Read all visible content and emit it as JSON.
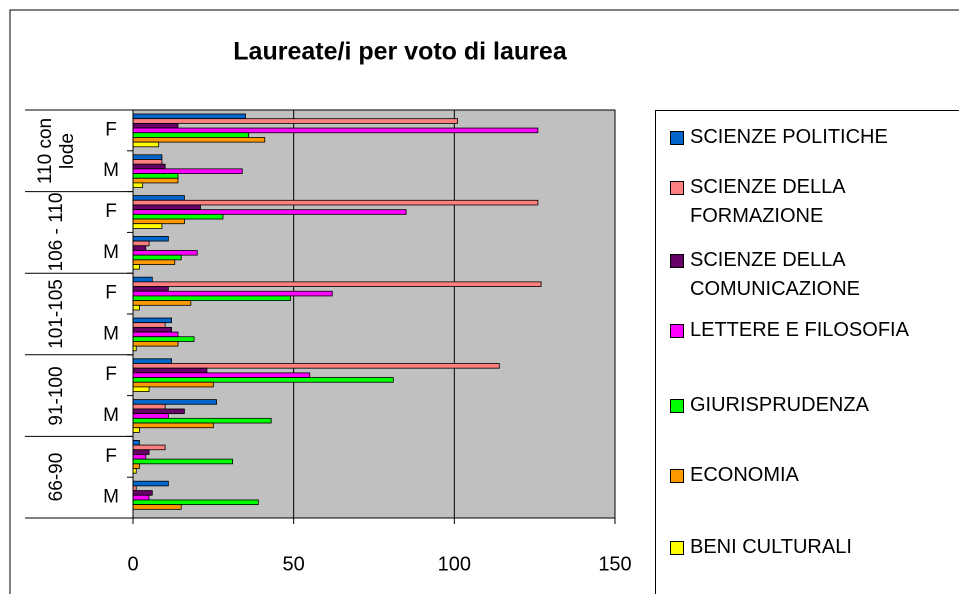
{
  "chart_data": {
    "type": "bar",
    "orientation": "horizontal",
    "title": "Laureate/i per voto di laurea",
    "groups": [
      "110 con lode",
      "106 - 110",
      "101-105",
      "91-100",
      "66-90"
    ],
    "categories": [
      "F",
      "M",
      "F",
      "M",
      "F",
      "M",
      "F",
      "M",
      "F",
      "M"
    ],
    "series": [
      {
        "name": "SCIENZE POLITICHE",
        "color": "#0066cc",
        "values": [
          35,
          9,
          16,
          11,
          6,
          12,
          12,
          26,
          2,
          11
        ]
      },
      {
        "name": "SCIENZE DELLA FORMAZIONE",
        "color": "#ff8080",
        "values": [
          101,
          9,
          126,
          5,
          127,
          10,
          114,
          10,
          10,
          1
        ]
      },
      {
        "name": "SCIENZE DELLA COMUNICAZIONE",
        "color": "#660066",
        "values": [
          14,
          10,
          21,
          4,
          11,
          12,
          23,
          16,
          5,
          6
        ]
      },
      {
        "name": "LETTERE E FILOSOFIA",
        "color": "#ff00ff",
        "values": [
          126,
          34,
          85,
          20,
          62,
          14,
          55,
          11,
          4,
          5
        ]
      },
      {
        "name": "GIURISPRUDENZA",
        "color": "#00ff00",
        "values": [
          36,
          14,
          28,
          15,
          49,
          19,
          81,
          43,
          31,
          39
        ]
      },
      {
        "name": "ECONOMIA",
        "color": "#ff9900",
        "values": [
          41,
          14,
          16,
          13,
          18,
          14,
          25,
          25,
          2,
          15
        ]
      },
      {
        "name": "BENI CULTURALI",
        "color": "#ffff00",
        "values": [
          8,
          3,
          9,
          2,
          2,
          1,
          5,
          2,
          1,
          0
        ]
      }
    ],
    "xlim": [
      0,
      150
    ],
    "xticks": [
      0,
      50,
      100,
      150
    ],
    "grid": true,
    "legend": "right"
  }
}
